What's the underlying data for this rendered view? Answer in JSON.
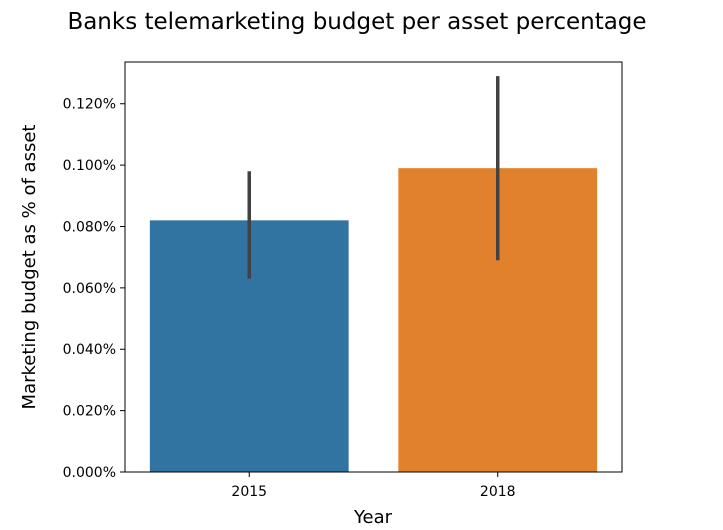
{
  "chart_data": {
    "type": "bar",
    "title": "Banks telemarketing budget per asset percentage",
    "xlabel": "Year",
    "ylabel": "Marketing budget as % of asset",
    "categories": [
      "2015",
      "2018"
    ],
    "values": [
      0.082,
      0.099
    ],
    "error_bars": [
      {
        "low": 0.063,
        "high": 0.098
      },
      {
        "low": 0.069,
        "high": 0.129
      }
    ],
    "colors": [
      "#3274a1",
      "#e1812c"
    ],
    "error_bar_color": "#424242",
    "ylim": [
      0,
      0.1336
    ],
    "yticks": [
      0,
      0.02,
      0.04,
      0.06,
      0.08,
      0.1,
      0.12
    ],
    "ytick_labels": [
      "0.000%",
      "0.020%",
      "0.040%",
      "0.060%",
      "0.080%",
      "0.100%",
      "0.120%"
    ],
    "grid": false,
    "legend": "none"
  }
}
